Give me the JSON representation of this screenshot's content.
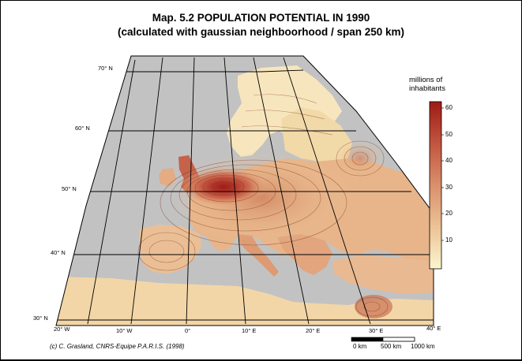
{
  "title": {
    "line1": "Map. 5.2 POPULATION POTENTIAL IN 1990",
    "line2": "(calculated with gaussian neighboorhood / span 250 km)"
  },
  "graticule": {
    "latitudes": [
      "70° N",
      "60° N",
      "50° N",
      "40° N",
      "30° N"
    ],
    "longitudes": [
      "20° W",
      "10° W",
      "0°",
      "10° E",
      "20° E",
      "30° E",
      "40° E"
    ]
  },
  "legend": {
    "title_line1": "millions of",
    "title_line2": "inhabitants",
    "ticks": [
      "60",
      "50",
      "40",
      "30",
      "20",
      "10"
    ],
    "color_low": "#fbf6cf",
    "color_high": "#9e1b16"
  },
  "scale_bar": {
    "labels": [
      "0 km",
      "500 km",
      "1000 km"
    ]
  },
  "credit": "(c) C. Grasland, CNRS-Equipe P.A.R.I.S. (1998)",
  "colors": {
    "sea": "#c2c2c2",
    "land_low": "#f4dfae",
    "core": "#a01d17"
  }
}
